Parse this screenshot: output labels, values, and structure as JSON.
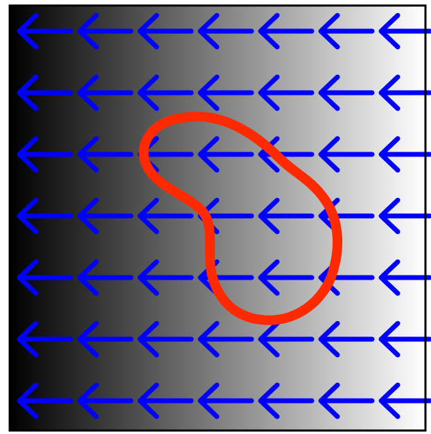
{
  "diagram": {
    "background": {
      "type": "horizontal-gradient",
      "from_color": "#000000",
      "to_color": "#ffffff",
      "direction": "left-to-right"
    },
    "frame_color": "#000000",
    "arrow_field": {
      "direction": "left",
      "rows": 7,
      "columns": 7,
      "color": "#0000ff",
      "icon": "arrow-left-icon"
    },
    "contour": {
      "shape": "closed-blob",
      "color": "#ff2a00"
    }
  }
}
